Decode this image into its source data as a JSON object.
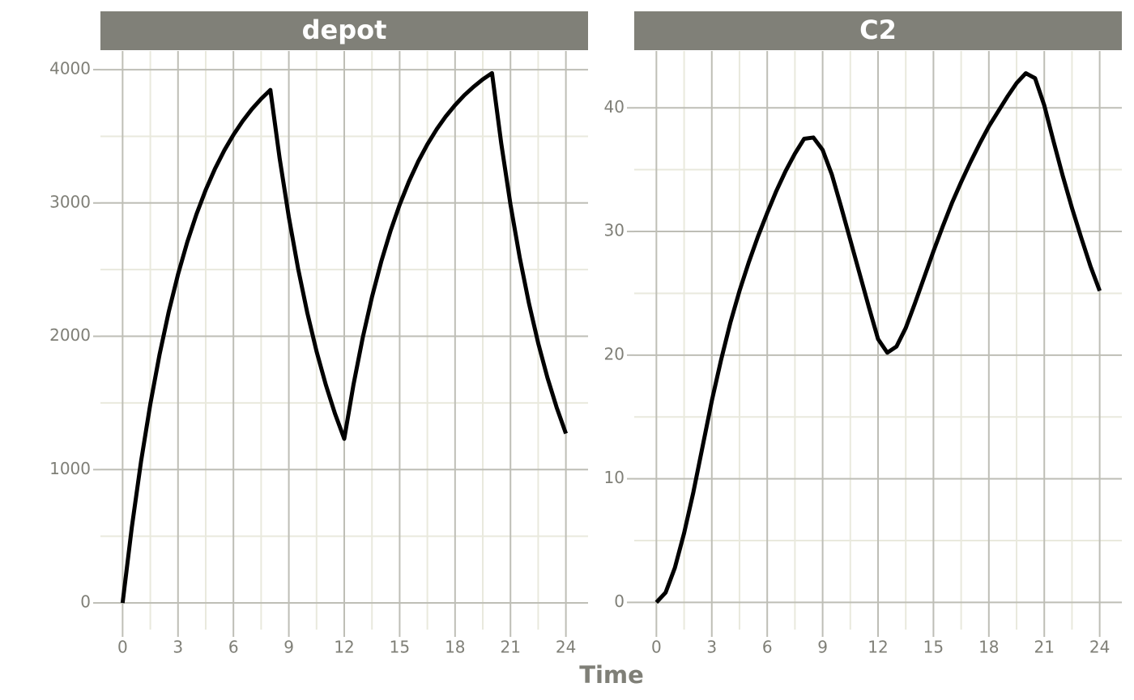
{
  "x_label": "Time",
  "chart_data": [
    {
      "type": "line",
      "title": "depot",
      "color": "#000000",
      "grid": true,
      "x": [
        0,
        0.5,
        1,
        1.5,
        2,
        2.5,
        3,
        3.5,
        4,
        4.5,
        5,
        5.5,
        6,
        6.5,
        7,
        7.5,
        8,
        8.5,
        9,
        9.5,
        10,
        10.5,
        11,
        11.5,
        12,
        12.5,
        13,
        13.5,
        14,
        14.5,
        15,
        15.5,
        16,
        16.5,
        17,
        17.5,
        18,
        18.5,
        19,
        19.5,
        20,
        20.5,
        21,
        21.5,
        22,
        22.5,
        23,
        23.5,
        24
      ],
      "values": [
        0,
        569,
        1063,
        1491,
        1863,
        2185,
        2464,
        2706,
        2916,
        3098,
        3256,
        3393,
        3511,
        3614,
        3704,
        3781,
        3848,
        3337,
        2894,
        2509,
        2176,
        1887,
        1637,
        1419,
        1231,
        1637,
        1989,
        2294,
        2559,
        2788,
        2987,
        3160,
        3310,
        3439,
        3552,
        3650,
        3734,
        3808,
        3871,
        3927,
        3974,
        3446,
        2988,
        2591,
        2247,
        1949,
        1690,
        1466,
        1271
      ],
      "xlim": [
        -1.2,
        25.2
      ],
      "xticks": [
        0,
        3,
        6,
        9,
        12,
        15,
        18,
        21,
        24
      ],
      "ylim": [
        -200,
        4140
      ],
      "yticks": [
        0,
        1000,
        2000,
        3000,
        4000
      ]
    },
    {
      "type": "line",
      "title": "C2",
      "color": "#000000",
      "grid": true,
      "x": [
        0,
        0.5,
        1,
        1.5,
        2,
        2.5,
        3,
        3.5,
        4,
        4.5,
        5,
        5.5,
        6,
        6.5,
        7,
        7.5,
        8,
        8.5,
        9,
        9.5,
        10,
        10.5,
        11,
        11.5,
        12,
        12.5,
        13,
        13.5,
        14,
        14.5,
        15,
        15.5,
        16,
        16.5,
        17,
        17.5,
        18,
        18.5,
        19,
        19.5,
        20,
        20.5,
        21,
        21.5,
        22,
        22.5,
        23,
        23.5,
        24
      ],
      "values": [
        0,
        0.8,
        2.8,
        5.6,
        8.9,
        12.6,
        16.3,
        19.6,
        22.6,
        25.2,
        27.5,
        29.6,
        31.5,
        33.3,
        34.9,
        36.3,
        37.5,
        37.6,
        36.6,
        34.6,
        32.0,
        29.3,
        26.6,
        23.9,
        21.3,
        20.2,
        20.7,
        22.2,
        24.2,
        26.3,
        28.4,
        30.4,
        32.3,
        34.0,
        35.6,
        37.1,
        38.5,
        39.7,
        40.9,
        42.0,
        42.8,
        42.4,
        40.2,
        37.3,
        34.5,
        31.9,
        29.5,
        27.2,
        25.2
      ],
      "xlim": [
        -1.2,
        25.2
      ],
      "xticks": [
        0,
        3,
        6,
        9,
        12,
        15,
        18,
        21,
        24
      ],
      "ylim": [
        -2.2,
        44.6
      ],
      "yticks": [
        0,
        10,
        20,
        30,
        40
      ]
    }
  ]
}
